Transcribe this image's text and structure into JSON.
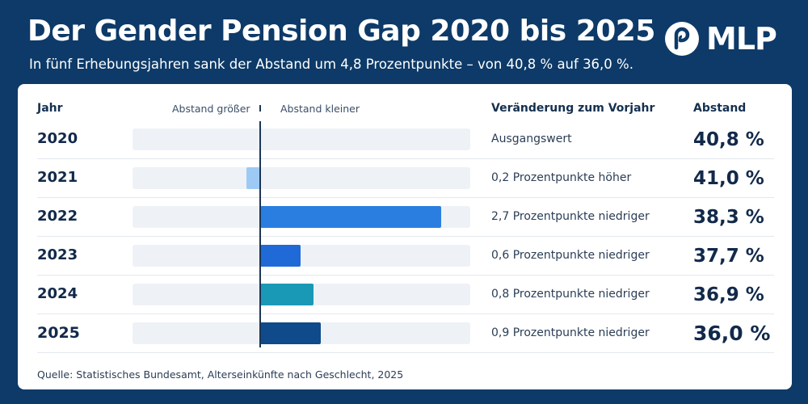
{
  "header": {
    "title": "Der Gender Pension Gap 2020 bis 2025",
    "subtitle": "In fünf Erhebungsjahren sank der Abstand um 4,8 Prozentpunkte – von 40,8 % auf 36,0 %.",
    "logo_text": "MLP"
  },
  "table": {
    "col_year": "Jahr",
    "col_larger": "Abstand größer",
    "col_smaller": "Abstand kleiner",
    "col_change": "Veränderung zum Vorjahr",
    "col_value": "Abstand"
  },
  "colors": {
    "background": "#0d3a68",
    "card": "#ffffff",
    "track": "#eef2f6",
    "text_dark": "#12294a"
  },
  "chart_data": {
    "type": "bar",
    "orientation": "horizontal-diverging",
    "categories": [
      "2020",
      "2021",
      "2022",
      "2023",
      "2024",
      "2025"
    ],
    "values": [
      0,
      0.2,
      -2.7,
      -0.6,
      -0.8,
      -0.9
    ],
    "value_unit": "Prozentpunkte",
    "bar_colors": [
      "#eef2f6",
      "#9ccaf5",
      "#2a7ee0",
      "#1f6ad6",
      "#1999b5",
      "#0f4a8a"
    ],
    "changes": [
      "Ausgangswert",
      "0,2 Prozentpunkte höher",
      "2,7 Prozentpunkte niedriger",
      "0,6 Prozentpunkte niedriger",
      "0,8 Prozentpunkte niedriger",
      "0,9 Prozentpunkte niedriger"
    ],
    "gaps": [
      "40,8 %",
      "41,0 %",
      "38,3 %",
      "37,7 %",
      "36,9 %",
      "36,0 %"
    ],
    "gap_values": [
      40.8,
      41.0,
      38.3,
      37.7,
      36.9,
      36.0
    ],
    "source": "Quelle: Statistisches Bundesamt, Alterseinkünfte nach Geschlecht, 2025"
  }
}
